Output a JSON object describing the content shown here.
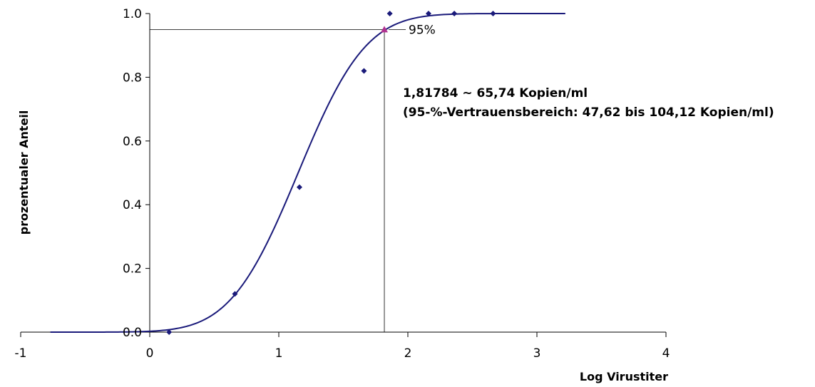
{
  "chart_data": {
    "type": "scatter",
    "xlabel": "Log Virustiter",
    "ylabel": "prozentualer Anteil",
    "xlim": [
      -1,
      4
    ],
    "ylim": [
      0,
      1
    ],
    "x_ticks": [
      "-1",
      "0",
      "1",
      "2",
      "3",
      "4"
    ],
    "y_ticks": [
      "0.0",
      "0.2",
      "0.4",
      "0.6",
      "0.8",
      "1.0"
    ],
    "points": [
      {
        "x": 0.15,
        "y": 0.0
      },
      {
        "x": 0.66,
        "y": 0.12
      },
      {
        "x": 1.16,
        "y": 0.455
      },
      {
        "x": 1.66,
        "y": 0.82
      },
      {
        "x": 1.86,
        "y": 1.0
      },
      {
        "x": 2.16,
        "y": 1.0
      },
      {
        "x": 2.36,
        "y": 1.0
      },
      {
        "x": 2.66,
        "y": 1.0
      }
    ],
    "fit_curve": {
      "type": "probit",
      "x_start": -0.77,
      "x_end": 3.22,
      "midpoint": 1.15,
      "slope": 0.413
    },
    "marker_point": {
      "x": 1.81784,
      "y": 0.95,
      "label": "95%"
    },
    "annotation_line1": "1,81784 ~ 65,74 Kopien/ml",
    "annotation_line2": "(95-%-Vertrauensbereich: 47,62 bis 104,12 Kopien/ml)",
    "colors": {
      "points": "#1a1a7a",
      "curve": "#1a1a7a",
      "marker": "#b0308f",
      "axis": "#000000"
    }
  }
}
